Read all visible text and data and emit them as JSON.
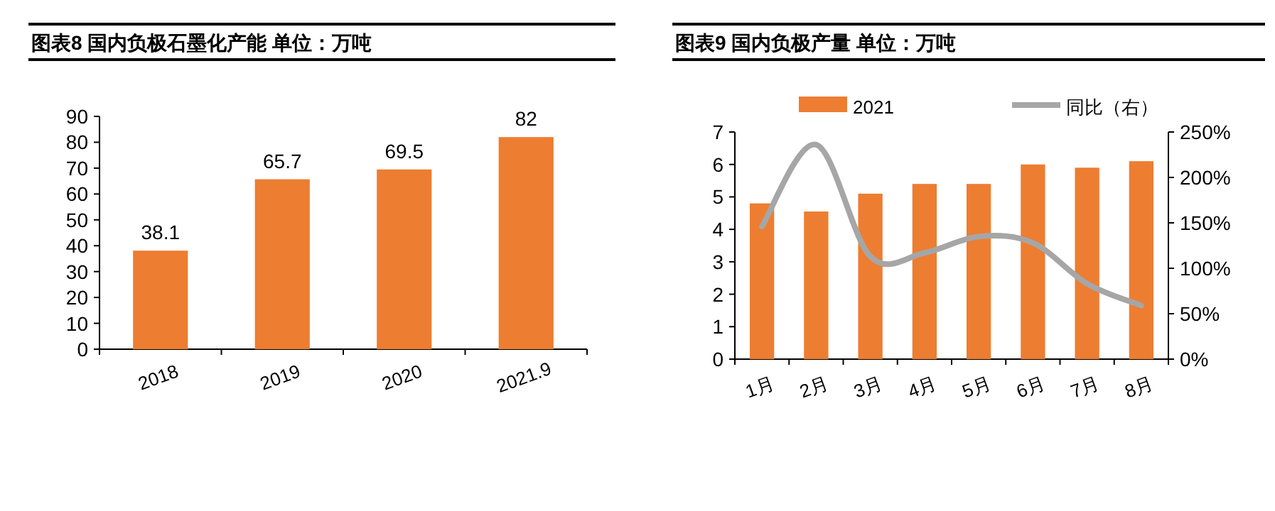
{
  "chart_data": [
    {
      "type": "bar",
      "title": "图表8  国内负极石墨化产能  单位：万吨",
      "categories": [
        "2018",
        "2019",
        "2020",
        "2021.9"
      ],
      "values": [
        38.1,
        65.7,
        69.5,
        82
      ],
      "color": "#ed7d31",
      "ylim": [
        0,
        90
      ],
      "yticks": [
        0,
        10,
        20,
        30,
        40,
        50,
        60,
        70,
        80,
        90
      ],
      "data_labels": true
    },
    {
      "type": "bar",
      "title": "图表9  国内负极产量  单位：万吨",
      "categories": [
        "1月",
        "2月",
        "3月",
        "4月",
        "5月",
        "6月",
        "7月",
        "8月"
      ],
      "series": [
        {
          "name": "2021",
          "color": "#ed7d31",
          "values": [
            4.8,
            4.55,
            5.1,
            5.4,
            5.4,
            6.0,
            5.9,
            6.1
          ]
        },
        {
          "name": "同比（右）",
          "type": "line",
          "axis": "y2",
          "color": "#a6a6a6",
          "values": [
            146,
            236,
            113,
            117,
            135,
            128,
            83,
            59
          ]
        }
      ],
      "ylim": [
        0,
        7
      ],
      "yticks": [
        0,
        1,
        2,
        3,
        4,
        5,
        6,
        7
      ],
      "y2lim": [
        0,
        250
      ],
      "y2ticks": [
        {
          "value": 0,
          "label": "0%"
        },
        {
          "value": 50,
          "label": "50%"
        },
        {
          "value": 100,
          "label": "100%"
        },
        {
          "value": 150,
          "label": "150%"
        },
        {
          "value": 200,
          "label": "200%"
        },
        {
          "value": 250,
          "label": "250%"
        }
      ],
      "legend": "top"
    }
  ]
}
